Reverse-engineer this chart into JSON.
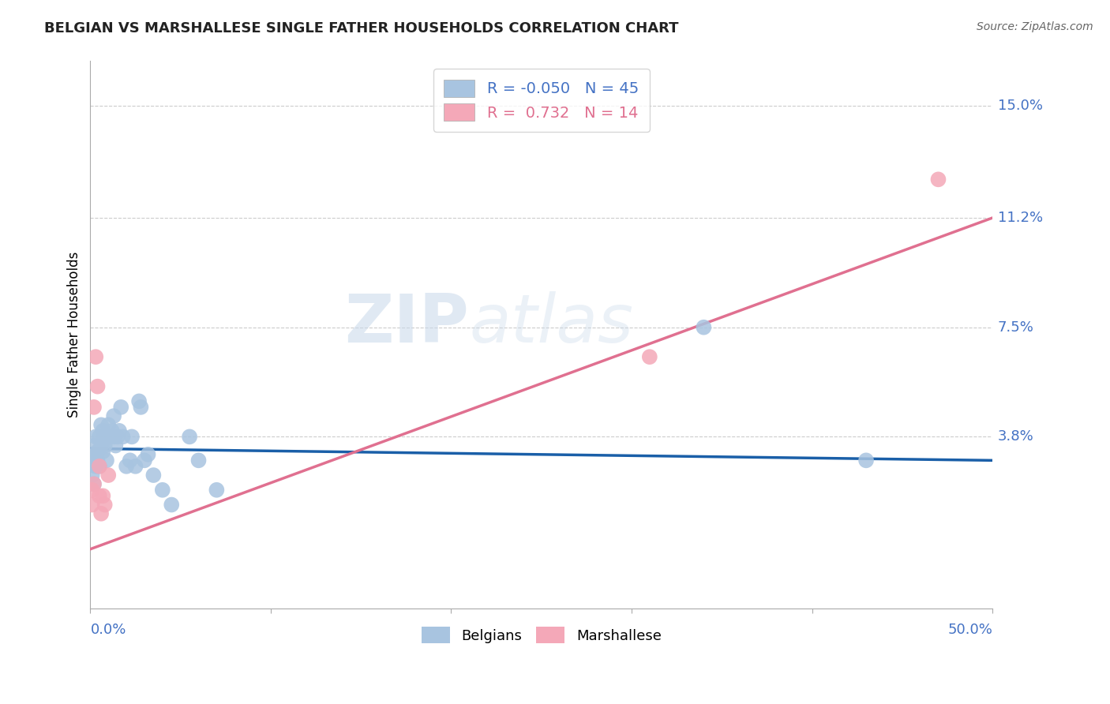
{
  "title": "BELGIAN VS MARSHALLESE SINGLE FATHER HOUSEHOLDS CORRELATION CHART",
  "source": "Source: ZipAtlas.com",
  "ylabel": "Single Father Households",
  "xlim": [
    0.0,
    0.5
  ],
  "ylim": [
    -0.02,
    0.165
  ],
  "yticks": [
    0.038,
    0.075,
    0.112,
    0.15
  ],
  "ytick_labels": [
    "3.8%",
    "7.5%",
    "11.2%",
    "15.0%"
  ],
  "xtick_labels": [
    "0.0%",
    "50.0%"
  ],
  "legend_r_belgian": "-0.050",
  "legend_n_belgian": "45",
  "legend_r_marshallese": "0.732",
  "legend_n_marshallese": "14",
  "belgian_color": "#a8c4e0",
  "marshallese_color": "#f4a8b8",
  "belgian_line_color": "#1a5fa8",
  "marshallese_line_color": "#e07090",
  "watermark_zip": "ZIP",
  "watermark_atlas": "atlas",
  "background_color": "#ffffff",
  "grid_color": "#cccccc",
  "belgian_line_x": [
    0.0,
    0.5
  ],
  "belgian_line_y": [
    0.034,
    0.03
  ],
  "marshallese_line_x": [
    0.0,
    0.5
  ],
  "marshallese_line_y": [
    0.0,
    0.112
  ],
  "belgians_x": [
    0.001,
    0.001,
    0.002,
    0.002,
    0.003,
    0.003,
    0.003,
    0.004,
    0.004,
    0.005,
    0.005,
    0.006,
    0.006,
    0.007,
    0.007,
    0.008,
    0.008,
    0.009,
    0.01,
    0.01,
    0.011,
    0.012,
    0.013,
    0.013,
    0.014,
    0.015,
    0.016,
    0.017,
    0.018,
    0.02,
    0.022,
    0.023,
    0.025,
    0.027,
    0.028,
    0.03,
    0.032,
    0.035,
    0.04,
    0.045,
    0.055,
    0.06,
    0.07,
    0.34,
    0.43
  ],
  "belgians_y": [
    0.03,
    0.025,
    0.022,
    0.035,
    0.032,
    0.028,
    0.038,
    0.03,
    0.033,
    0.038,
    0.028,
    0.035,
    0.042,
    0.033,
    0.04,
    0.038,
    0.035,
    0.03,
    0.042,
    0.038,
    0.038,
    0.04,
    0.045,
    0.038,
    0.035,
    0.038,
    0.04,
    0.048,
    0.038,
    0.028,
    0.03,
    0.038,
    0.028,
    0.05,
    0.048,
    0.03,
    0.032,
    0.025,
    0.02,
    0.015,
    0.038,
    0.03,
    0.02,
    0.075,
    0.03
  ],
  "marshallese_x": [
    0.001,
    0.001,
    0.002,
    0.002,
    0.003,
    0.004,
    0.005,
    0.005,
    0.006,
    0.007,
    0.008,
    0.01,
    0.31,
    0.47
  ],
  "marshallese_y": [
    0.015,
    0.02,
    0.048,
    0.022,
    0.065,
    0.055,
    0.028,
    0.018,
    0.012,
    0.018,
    0.015,
    0.025,
    0.065,
    0.125
  ]
}
